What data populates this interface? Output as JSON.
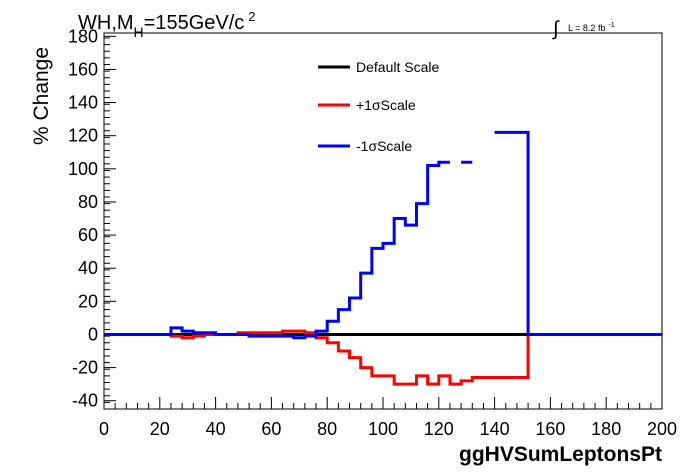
{
  "title": {
    "main": "WH,M",
    "sub": "H",
    "rest": "=155GeV/c",
    "sup": "2"
  },
  "lumi": {
    "integral": "∫",
    "text": "L = 8.2 fb",
    "sup": "-1"
  },
  "legend": [
    {
      "label": "Default Scale",
      "color": "#000000"
    },
    {
      "label": "+1σScale",
      "color": "#ff0000"
    },
    {
      "label": "-1σScale",
      "color": "#0000ff"
    }
  ],
  "chart_data": {
    "type": "line",
    "xlabel": "ggHVSumLeptonsPt",
    "ylabel": "% Change",
    "xlim": [
      0,
      200
    ],
    "ylim": [
      -45,
      182
    ],
    "x_ticks": [
      0,
      20,
      40,
      60,
      80,
      100,
      120,
      140,
      160,
      180,
      200
    ],
    "y_ticks": [
      -40,
      -20,
      0,
      20,
      40,
      60,
      80,
      100,
      120,
      140,
      160,
      180
    ],
    "bin_edges": [
      0,
      4,
      8,
      12,
      16,
      20,
      24,
      28,
      32,
      36,
      40,
      44,
      48,
      52,
      56,
      60,
      64,
      68,
      72,
      76,
      80,
      84,
      88,
      92,
      96,
      100,
      104,
      108,
      112,
      116,
      120,
      124,
      128,
      132,
      136,
      140,
      144,
      148,
      152,
      156,
      160,
      164,
      168,
      172,
      176,
      180,
      184,
      188,
      192,
      196,
      200
    ],
    "series": [
      {
        "name": "Default Scale",
        "color": "#000000",
        "values": [
          0,
          0,
          0,
          0,
          0,
          0,
          0,
          0,
          0,
          0,
          0,
          0,
          0,
          0,
          0,
          0,
          0,
          0,
          0,
          0,
          0,
          0,
          0,
          0,
          0,
          0,
          0,
          0,
          0,
          0,
          0,
          0,
          0,
          0,
          0,
          0,
          0,
          0,
          0,
          0,
          0,
          0,
          0,
          0,
          0,
          0,
          0,
          0,
          0,
          0
        ]
      },
      {
        "name": "+1σScale",
        "color": "#ff0000",
        "values": [
          0,
          0,
          0,
          0,
          0,
          0,
          -1,
          -2,
          -1,
          0,
          0,
          0,
          1,
          1,
          1,
          1,
          2,
          2,
          1,
          -2,
          -5,
          -10,
          -14,
          -20,
          -25,
          -25,
          -30,
          -30,
          -25,
          -30,
          -25,
          -30,
          -28,
          -26,
          -26,
          -26,
          -26,
          -26,
          0,
          0,
          0,
          0,
          0,
          0,
          0,
          0,
          0,
          0,
          0,
          0
        ]
      },
      {
        "name": "-1σScale",
        "color": "#0000ff",
        "values": [
          0,
          0,
          0,
          0,
          0,
          0,
          4,
          2,
          1,
          1,
          0,
          0,
          0,
          -1,
          -1,
          -1,
          -1,
          -2,
          -1,
          2,
          8,
          15,
          22,
          37,
          52,
          55,
          70,
          66,
          79,
          102,
          104,
          null,
          104,
          null,
          null,
          122,
          122,
          122,
          0,
          0,
          0,
          0,
          0,
          0,
          0,
          0,
          0,
          0,
          0,
          0
        ]
      }
    ]
  }
}
